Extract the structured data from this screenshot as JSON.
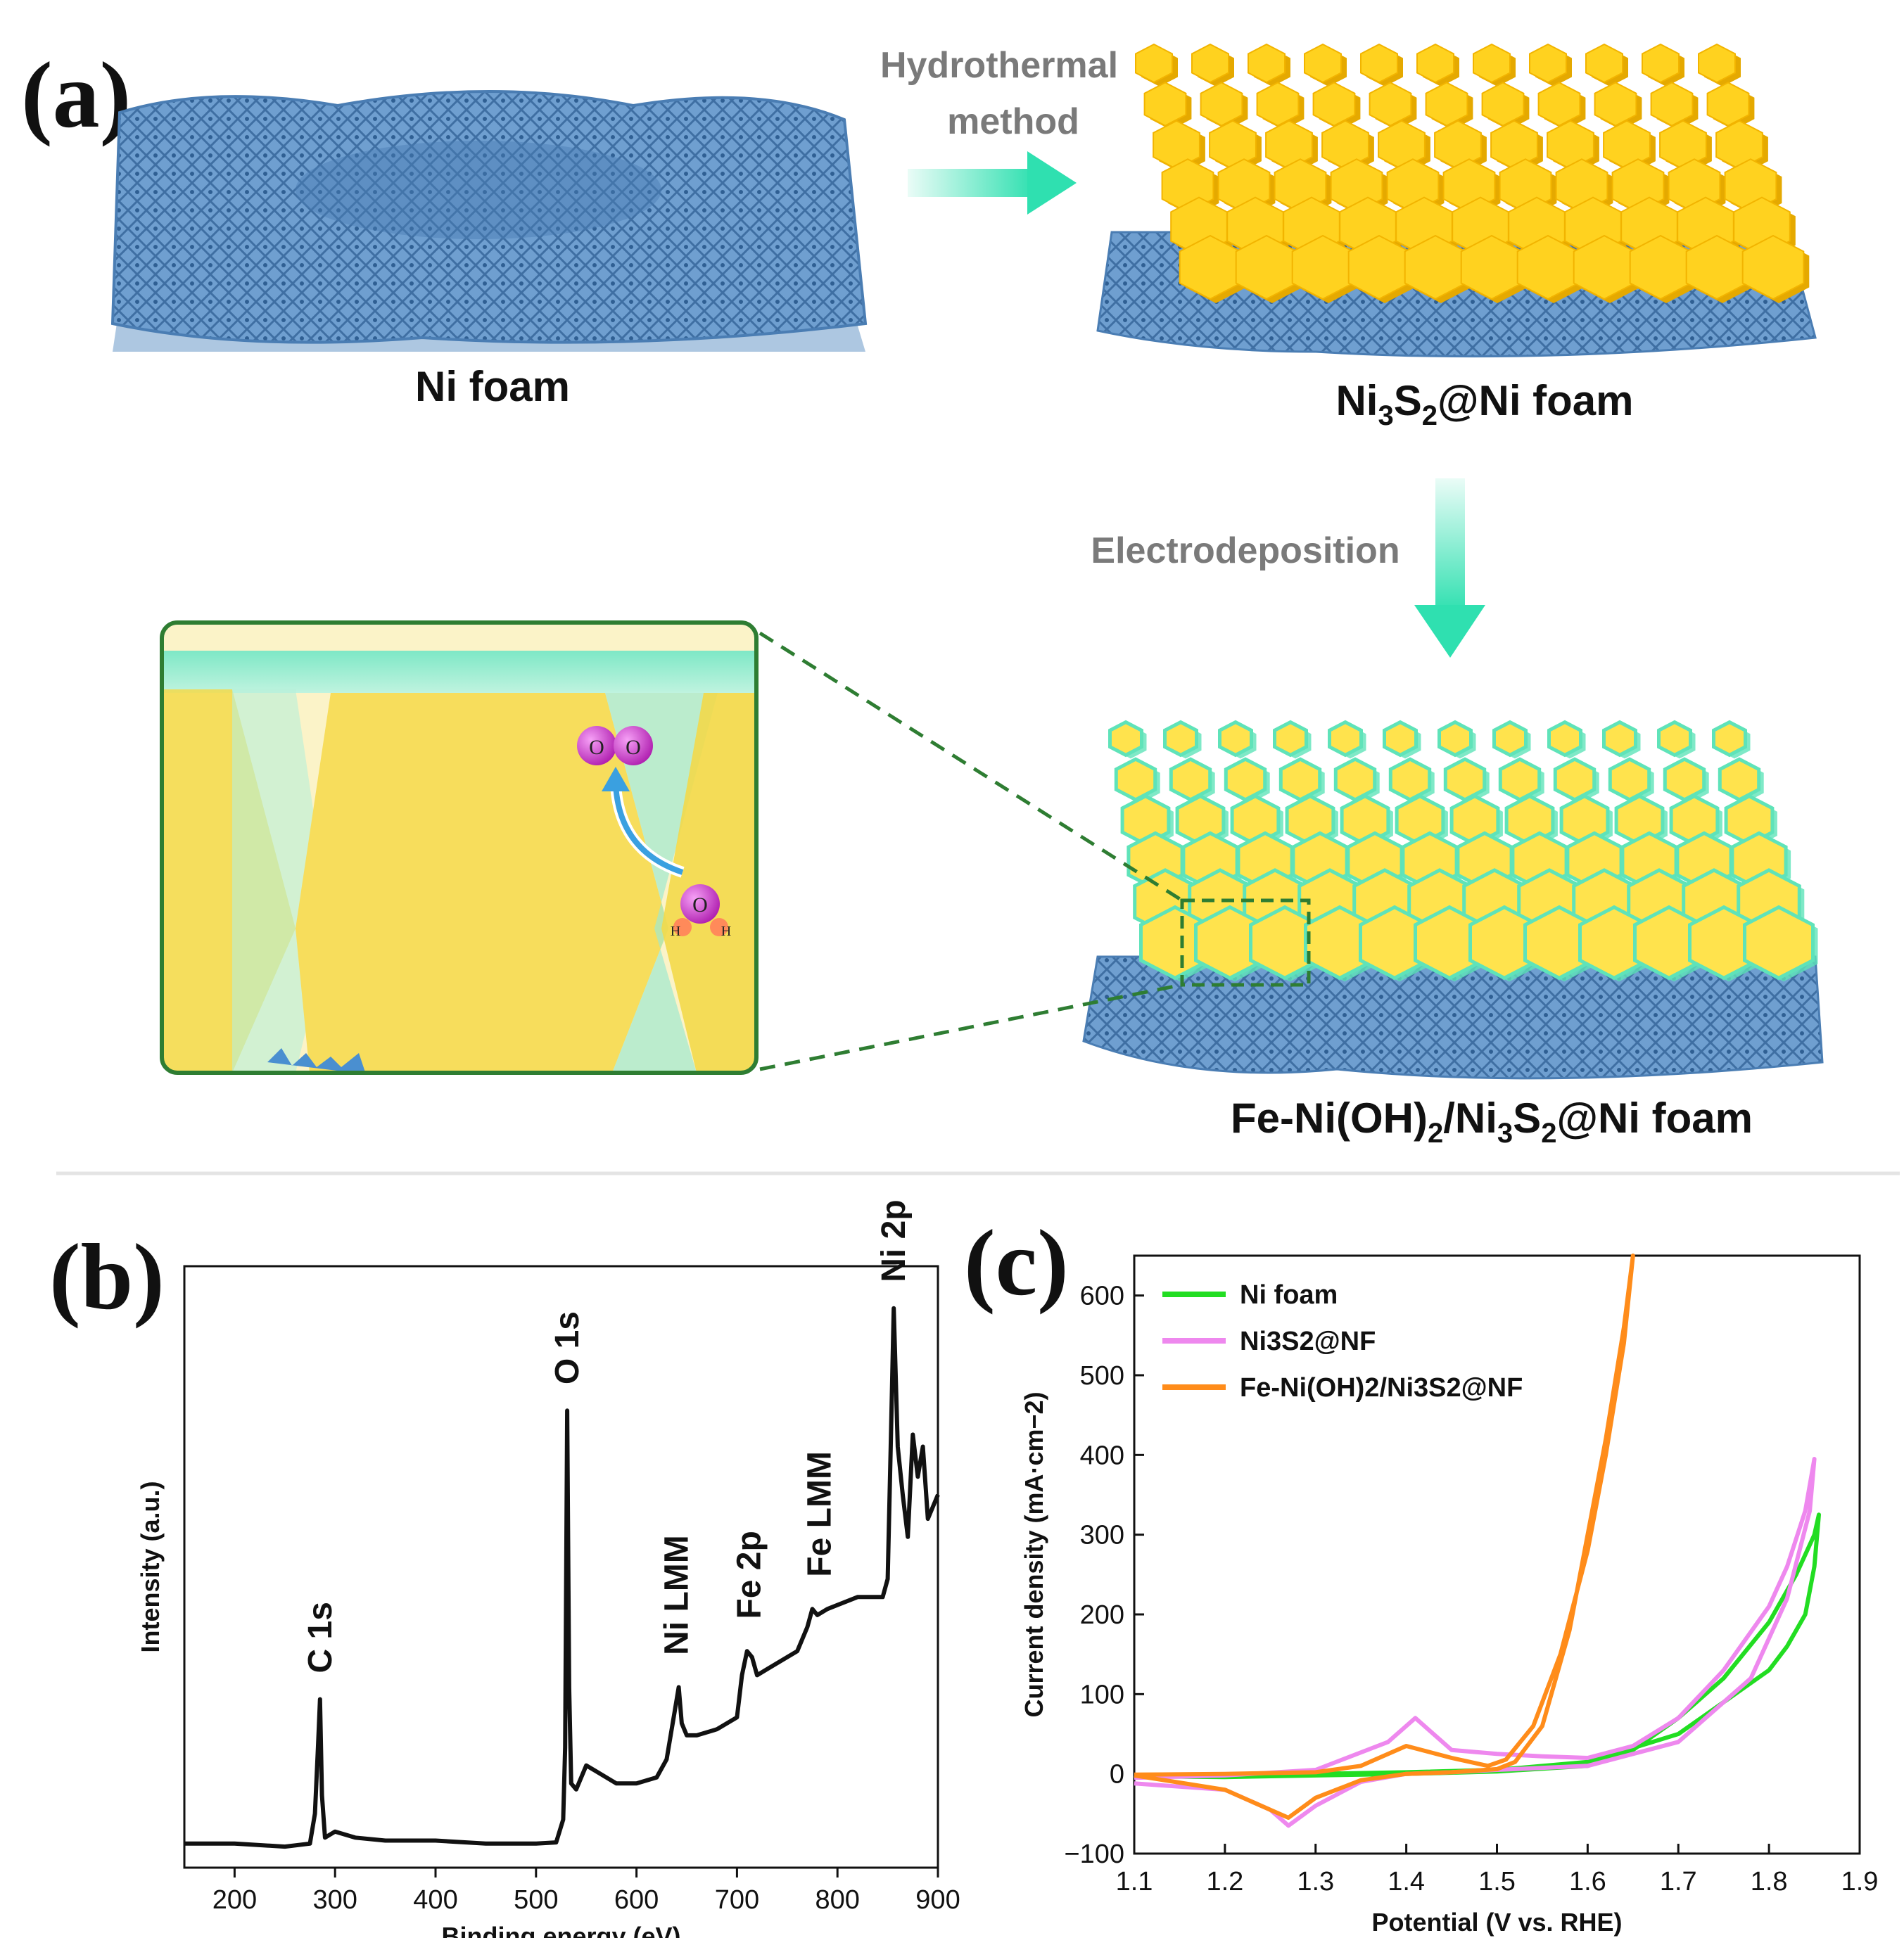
{
  "panel_a": {
    "label": "(a)",
    "ni_foam": "Ni foam",
    "ni3s2": "Ni3S2@Ni foam",
    "final": "Fe-Ni(OH)2/Ni3S2@Ni foam",
    "step1_line1": "Hydrothermal",
    "step1_line2": "method",
    "step2": "Electrodeposition",
    "inset": {
      "o2_atom": "O",
      "oh_o": "O",
      "oh_h": "H"
    }
  },
  "panel_b": {
    "label": "(b)"
  },
  "panel_c": {
    "label": "(c)"
  },
  "colors": {
    "foam": "#5b8fc4",
    "sheet": "#ffd21f",
    "sheet_dark": "#e5a900",
    "coating": "#5fe3b9",
    "arrow": "#2fe0b0",
    "oxygen": "#cc33cc",
    "inset_border": "#2e7d32",
    "ni_foam_curve": "#22dd22",
    "ni3s2_curve": "#ee88ee",
    "fe_curve": "#ff8c1a",
    "xps_curve": "#111111"
  },
  "chart_data": [
    {
      "type": "line",
      "panel": "b",
      "xlabel": "Binding energy (eV)",
      "ylabel": "Intensity (a.u.)",
      "xlim": [
        150,
        900
      ],
      "xticks": [
        200,
        300,
        400,
        500,
        600,
        700,
        800,
        900
      ],
      "annotations": [
        {
          "text": "C 1s",
          "x": 285
        },
        {
          "text": "O 1s",
          "x": 531
        },
        {
          "text": "Ni  LMM",
          "x": 640
        },
        {
          "text": "Fe 2p",
          "x": 712
        },
        {
          "text": "Fe  LMM",
          "x": 782
        },
        {
          "text": "Ni 2p",
          "x": 856
        }
      ],
      "series": [
        {
          "x": [
            150,
            200,
            250,
            275,
            280,
            283,
            285,
            287,
            290,
            300,
            320,
            350,
            400,
            450,
            500,
            520,
            527,
            529,
            531,
            533,
            535,
            540,
            550,
            560,
            580,
            600,
            620,
            630,
            638,
            642,
            645,
            650,
            660,
            680,
            700,
            705,
            710,
            715,
            720,
            730,
            760,
            770,
            775,
            780,
            790,
            820,
            845,
            850,
            853,
            856,
            860,
            865,
            870,
            875,
            880,
            885,
            890,
            900
          ],
          "y": [
            0.04,
            0.04,
            0.035,
            0.04,
            0.09,
            0.2,
            0.28,
            0.12,
            0.05,
            0.06,
            0.05,
            0.045,
            0.045,
            0.04,
            0.04,
            0.042,
            0.08,
            0.2,
            0.76,
            0.3,
            0.14,
            0.13,
            0.17,
            0.16,
            0.14,
            0.14,
            0.15,
            0.18,
            0.26,
            0.3,
            0.24,
            0.22,
            0.22,
            0.23,
            0.25,
            0.32,
            0.36,
            0.35,
            0.32,
            0.33,
            0.36,
            0.4,
            0.43,
            0.42,
            0.43,
            0.45,
            0.45,
            0.48,
            0.7,
            0.93,
            0.7,
            0.62,
            0.55,
            0.72,
            0.65,
            0.7,
            0.58,
            0.62
          ]
        }
      ]
    },
    {
      "type": "line",
      "panel": "c",
      "xlabel": "Potential (V vs. RHE)",
      "ylabel": "Current density (mA·cm−2)",
      "xlim": [
        1.1,
        1.9
      ],
      "ylim": [
        -100,
        650
      ],
      "xticks": [
        1.1,
        1.2,
        1.3,
        1.4,
        1.5,
        1.6,
        1.7,
        1.8,
        1.9
      ],
      "yticks": [
        -100,
        0,
        100,
        200,
        300,
        400,
        500,
        600
      ],
      "legend_position": "top-left",
      "series": [
        {
          "name": "Ni foam",
          "color": "#22dd22",
          "x": [
            1.1,
            1.2,
            1.3,
            1.4,
            1.5,
            1.6,
            1.65,
            1.7,
            1.75,
            1.8,
            1.83,
            1.85,
            1.855,
            1.85,
            1.84,
            1.82,
            1.8,
            1.75,
            1.7,
            1.6,
            1.5,
            1.4,
            1.3,
            1.2,
            1.1
          ],
          "y": [
            -3,
            -4,
            -2,
            0,
            3,
            10,
            30,
            70,
            120,
            190,
            250,
            300,
            325,
            260,
            200,
            160,
            130,
            90,
            50,
            15,
            5,
            2,
            0,
            -2,
            -3
          ]
        },
        {
          "name": "Ni3S2@NF",
          "color": "#ee88ee",
          "x": [
            1.1,
            1.2,
            1.25,
            1.27,
            1.3,
            1.35,
            1.4,
            1.45,
            1.5,
            1.6,
            1.7,
            1.78,
            1.82,
            1.845,
            1.85,
            1.84,
            1.82,
            1.8,
            1.75,
            1.7,
            1.65,
            1.6,
            1.55,
            1.5,
            1.45,
            1.41,
            1.38,
            1.3,
            1.2,
            1.1
          ],
          "y": [
            -12,
            -20,
            -45,
            -65,
            -40,
            -10,
            0,
            2,
            5,
            10,
            40,
            120,
            220,
            330,
            395,
            330,
            260,
            210,
            130,
            70,
            35,
            20,
            22,
            25,
            30,
            70,
            40,
            5,
            -2,
            -5
          ],
          "y_note": "branch order: cathodic return then anodic"
        },
        {
          "name": "Fe-Ni(OH)2/Ni3S2@NF",
          "color": "#ff8c1a",
          "x": [
            1.1,
            1.2,
            1.25,
            1.27,
            1.3,
            1.35,
            1.4,
            1.45,
            1.5,
            1.52,
            1.55,
            1.58,
            1.6,
            1.62,
            1.64,
            1.65,
            1.64,
            1.62,
            1.6,
            1.57,
            1.54,
            1.51,
            1.49,
            1.45,
            1.4,
            1.35,
            1.3,
            1.2,
            1.1
          ],
          "y": [
            -2,
            -20,
            -45,
            -55,
            -30,
            -8,
            0,
            2,
            6,
            15,
            60,
            180,
            300,
            420,
            560,
            650,
            540,
            400,
            280,
            150,
            60,
            18,
            10,
            20,
            35,
            10,
            2,
            0,
            -1
          ]
        }
      ]
    }
  ]
}
